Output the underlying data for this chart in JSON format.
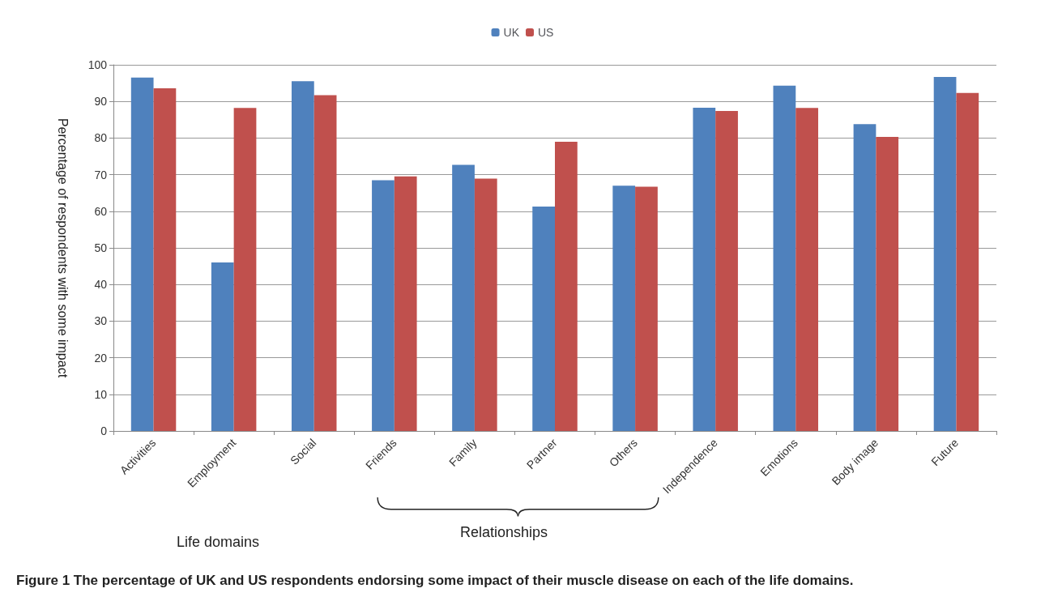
{
  "chart_data": {
    "type": "bar",
    "categories": [
      "Activities",
      "Employment",
      "Social",
      "Friends",
      "Family",
      "Partner",
      "Others",
      "Independence",
      "Emotions",
      "Body image",
      "Future"
    ],
    "series": [
      {
        "name": "UK",
        "color": "#4f81bd",
        "values": [
          96.5,
          46,
          95.5,
          68.5,
          72.7,
          61.3,
          67,
          88.3,
          94.3,
          83.8,
          96.7
        ]
      },
      {
        "name": "US",
        "color": "#c0504d",
        "values": [
          93.6,
          88.2,
          91.7,
          69.5,
          68.9,
          79,
          66.7,
          87.4,
          88.2,
          80.3,
          92.3
        ]
      }
    ],
    "ylabel": "Percentage of respondents with some impact",
    "ylim": [
      0,
      100
    ],
    "yticks": [
      0,
      10,
      20,
      30,
      40,
      50,
      60,
      70,
      80,
      90,
      100
    ],
    "grid": "y",
    "legend": "top",
    "annotations": [
      "Life domains",
      "Relationships",
      "Figure 1 The percentage of UK and US respondents endorsing some impact of their muscle disease on each of the life domains."
    ]
  }
}
